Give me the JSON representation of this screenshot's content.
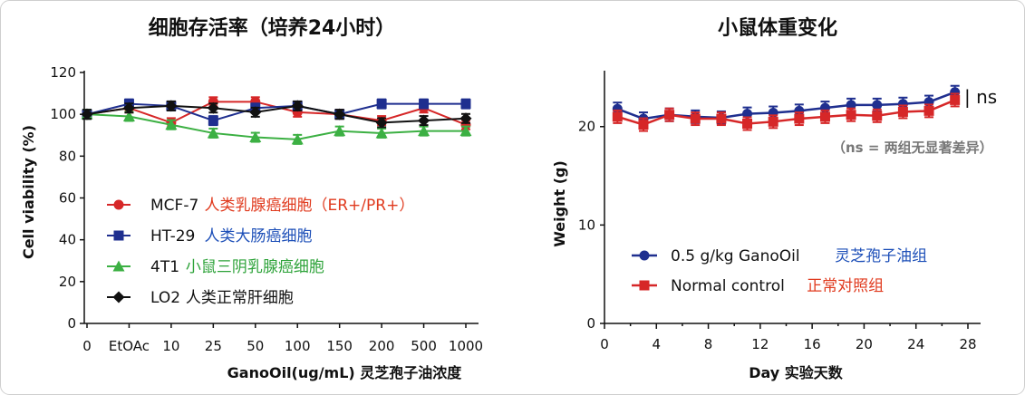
{
  "chart_data": [
    {
      "type": "line",
      "title": "细胞存活率（培养24小时）",
      "xlabel": "GanoOil(ug/mL) 灵芝孢子油浓度",
      "ylabel": "Cell viability (%)",
      "categories": [
        "0",
        "EtOAc",
        "10",
        "25",
        "50",
        "100",
        "150",
        "200",
        "500",
        "1000"
      ],
      "yticks": [
        "0",
        "20",
        "40",
        "60",
        "80",
        "100",
        "120"
      ],
      "ylim": [
        0,
        120
      ],
      "grid": false,
      "legend_position": "lower-left",
      "series": [
        {
          "name": "MCF-7",
          "name_cn": "人类乳腺癌细胞（ER+/PR+）",
          "color": "#d62728",
          "marker": "circle",
          "values": [
            100,
            103,
            96,
            106,
            106,
            101,
            100,
            97,
            103,
            95
          ]
        },
        {
          "name": "HT-29",
          "name_cn": "人类大肠癌细胞",
          "color": "#1f2f8f",
          "marker": "square",
          "values": [
            100,
            105,
            104,
            97,
            103,
            104,
            100,
            105,
            105,
            105
          ]
        },
        {
          "name": "4T1",
          "name_cn": "小鼠三阴乳腺癌细胞",
          "color": "#3cb043",
          "marker": "triangle",
          "values": [
            100,
            99,
            95,
            91,
            89,
            88,
            92,
            91,
            92,
            92
          ]
        },
        {
          "name": "LO2",
          "name_cn": "人类正常肝细胞",
          "color": "#111111",
          "marker": "diamond",
          "values": [
            100,
            103,
            104,
            103,
            101,
            104,
            100,
            96,
            97,
            98
          ]
        }
      ]
    },
    {
      "type": "line",
      "title": "小鼠体重变化",
      "xlabel": "Day 实验天数",
      "ylabel": "Weight (g)",
      "xticks": [
        "0",
        "4",
        "8",
        "12",
        "16",
        "20",
        "24",
        "28"
      ],
      "yticks": [
        "0",
        "10",
        "20"
      ],
      "xlim": [
        0,
        28
      ],
      "ylim": [
        0,
        25.5
      ],
      "grid": false,
      "legend_position": "lower-center",
      "annotation": "| ns",
      "note": "（ns = 两组无显著差异）",
      "series": [
        {
          "name": "0.5 g/kg  GanoOil",
          "name_cn": "灵芝孢子油组",
          "color": "#1f2f8f",
          "marker": "circle",
          "x": [
            1,
            3,
            5,
            7,
            9,
            11,
            13,
            15,
            17,
            19,
            21,
            23,
            25,
            27
          ],
          "values": [
            21.8,
            20.8,
            21.2,
            21.0,
            20.9,
            21.3,
            21.4,
            21.6,
            21.9,
            22.2,
            22.2,
            22.3,
            22.5,
            23.5
          ]
        },
        {
          "name": "Normal control",
          "name_cn": "正常对照组",
          "color": "#d62728",
          "marker": "square",
          "x": [
            1,
            3,
            5,
            7,
            9,
            11,
            13,
            15,
            17,
            19,
            21,
            23,
            25,
            27
          ],
          "values": [
            21.0,
            20.2,
            21.2,
            20.8,
            20.8,
            20.3,
            20.5,
            20.8,
            21.0,
            21.2,
            21.1,
            21.5,
            21.6,
            22.7
          ]
        }
      ]
    }
  ]
}
